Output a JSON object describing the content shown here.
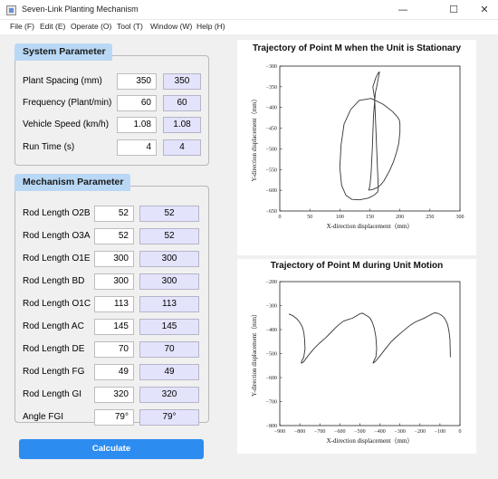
{
  "window": {
    "title": "Seven-Link Planting Mechanism",
    "minimize_glyph": "—",
    "maximize_glyph": "☐",
    "close_glyph": "✕"
  },
  "menu": [
    "File (F)",
    "Edit (E)",
    "Operate (O)",
    "Tool (T)",
    "Window (W)",
    "Help (H)"
  ],
  "system_parameter": {
    "header": "System Parameter",
    "rows": [
      {
        "label": "Plant Spacing (mm)",
        "input": "350",
        "display": "350"
      },
      {
        "label": "Frequency (Plant/min)",
        "input": "60",
        "display": "60"
      },
      {
        "label": "Vehicle Speed (km/h)",
        "input": "1.08",
        "display": "1.08"
      },
      {
        "label": "Run Time (s)",
        "input": "4",
        "display": "4"
      }
    ]
  },
  "mechanism_parameter": {
    "header": "Mechanism Parameter",
    "rows": [
      {
        "label": "Rod Length O2B",
        "input": "52",
        "display": "52"
      },
      {
        "label": "Rod Length O3A",
        "input": "52",
        "display": "52"
      },
      {
        "label": "Rod Length O1E",
        "input": "300",
        "display": "300"
      },
      {
        "label": "Rod Length BD",
        "input": "300",
        "display": "300"
      },
      {
        "label": "Rod Length O1C",
        "input": "113",
        "display": "113"
      },
      {
        "label": "Rod Length AC",
        "input": "145",
        "display": "145"
      },
      {
        "label": "Rod Length DE",
        "input": "70",
        "display": "70"
      },
      {
        "label": "Rod Length FG",
        "input": "49",
        "display": "49"
      },
      {
        "label": "Rod Length GI",
        "input": "320",
        "display": "320"
      },
      {
        "label": "Angle FGI",
        "input": "79°",
        "display": "79°"
      }
    ]
  },
  "calculate_label": "Calculate",
  "chart_data": [
    {
      "type": "line",
      "title": "Trajectory of Point M when the Unit is Stationary",
      "xlabel": "X-direction displacement（mm）",
      "ylabel": "Y-direction displacement（mm）",
      "xlim": [
        0,
        300
      ],
      "ylim": [
        -650,
        -300
      ],
      "xticks": [
        0,
        50,
        100,
        150,
        200,
        250,
        300
      ],
      "yticks": [
        -300,
        -350,
        -400,
        -450,
        -500,
        -550,
        -600,
        -650
      ],
      "series": [
        {
          "x": [
            148,
            155,
            163,
            168,
            173,
            177,
            183,
            189,
            194,
            198,
            200,
            200,
            199,
            196,
            188,
            172,
            152,
            132,
            118,
            107,
            102,
            100,
            103,
            110,
            120,
            133,
            147,
            157,
            163,
            164,
            158,
            155,
            160,
            163,
            165,
            166,
            162,
            159,
            156,
            154,
            152,
            150,
            148
          ],
          "y": [
            -600,
            -598,
            -593,
            -587,
            -578,
            -568,
            -552,
            -532,
            -510,
            -488,
            -460,
            -440,
            -430,
            -423,
            -410,
            -392,
            -378,
            -383,
            -405,
            -440,
            -490,
            -545,
            -588,
            -612,
            -622,
            -623,
            -619,
            -612,
            -604,
            -596,
            -380,
            -350,
            -328,
            -319,
            -315,
            -314,
            -345,
            -365,
            -420,
            -500,
            -560,
            -590,
            -600
          ]
        }
      ]
    },
    {
      "type": "line",
      "title": "Trajectory of Point M during Unit Motion",
      "xlabel": "X-direction displacement（mm）",
      "ylabel": "Y-direction displacement（mm）",
      "xlim": [
        -900,
        0
      ],
      "ylim": [
        -800,
        -200
      ],
      "xticks": [
        -900,
        -800,
        -700,
        -600,
        -500,
        -400,
        -300,
        -200,
        -100,
        0
      ],
      "yticks": [
        -200,
        -300,
        -400,
        -500,
        -600,
        -700,
        -800
      ],
      "series": [
        {
          "x": [
            -855,
            -835,
            -815,
            -800,
            -788,
            -780,
            -776,
            -774,
            -780,
            -790,
            -793,
            -782,
            -760,
            -730,
            -700,
            -672,
            -648,
            -625,
            -603,
            -582,
            -560,
            -538,
            -515,
            -498,
            -485,
            -473,
            -460,
            -448,
            -438,
            -428,
            -420,
            -416,
            -420,
            -430,
            -434,
            -422,
            -400,
            -372,
            -345,
            -318,
            -292,
            -268,
            -245,
            -222,
            -200,
            -178,
            -158,
            -140,
            -127,
            -112,
            -96,
            -82,
            -72,
            -62,
            -55,
            -50,
            -49,
            -48
          ],
          "y": [
            -335,
            -342,
            -355,
            -370,
            -388,
            -410,
            -440,
            -480,
            -515,
            -530,
            -540,
            -535,
            -510,
            -480,
            -455,
            -435,
            -415,
            -395,
            -378,
            -365,
            -358,
            -353,
            -342,
            -333,
            -332,
            -338,
            -345,
            -353,
            -370,
            -395,
            -430,
            -480,
            -515,
            -530,
            -540,
            -532,
            -510,
            -480,
            -452,
            -430,
            -412,
            -395,
            -380,
            -368,
            -360,
            -352,
            -343,
            -335,
            -330,
            -332,
            -338,
            -348,
            -360,
            -378,
            -405,
            -440,
            -480,
            -515
          ]
        }
      ]
    }
  ]
}
